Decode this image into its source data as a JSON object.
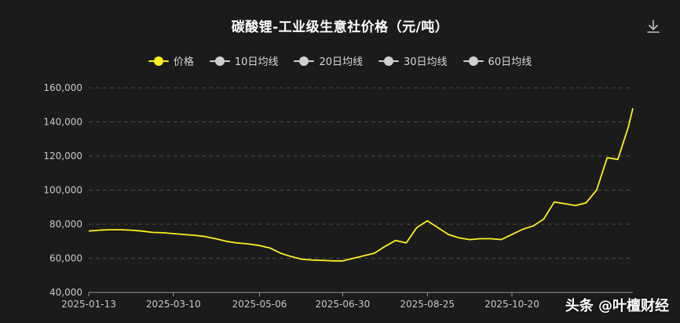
{
  "header": {
    "title": "碳酸锂-工业级生意社价格（元/吨）",
    "download_icon": "download-icon"
  },
  "legend": {
    "items": [
      {
        "label": "价格",
        "color": "#ffef1f"
      },
      {
        "label": "10日均线",
        "color": "#cfcfcf"
      },
      {
        "label": "20日均线",
        "color": "#cfcfcf"
      },
      {
        "label": "30日均线",
        "color": "#cfcfcf"
      },
      {
        "label": "60日均线",
        "color": "#cfcfcf"
      }
    ]
  },
  "watermark": {
    "text": "头条 @叶檀财经"
  },
  "chart_data": {
    "type": "line",
    "title": "碳酸锂-工业级生意社价格（元/吨）",
    "xlabel": "",
    "ylabel": "",
    "ylim": [
      40000,
      160000
    ],
    "yticks": [
      "40,000",
      "60,000",
      "80,000",
      "100,000",
      "120,000",
      "140,000",
      "160,000"
    ],
    "xticks": [
      "2025-01-13",
      "2025-03-10",
      "2025-05-06",
      "2025-06-30",
      "2025-08-25",
      "2025-10-20"
    ],
    "grid": true,
    "legend_position": "top",
    "series": [
      {
        "name": "价格",
        "color": "#ffef1f",
        "points": [
          [
            "2025-01-13",
            76000
          ],
          [
            "2025-01-20",
            76500
          ],
          [
            "2025-01-27",
            76800
          ],
          [
            "2025-02-03",
            76800
          ],
          [
            "2025-02-10",
            76500
          ],
          [
            "2025-02-17",
            76000
          ],
          [
            "2025-02-24",
            75200
          ],
          [
            "2025-03-03",
            75000
          ],
          [
            "2025-03-10",
            74500
          ],
          [
            "2025-03-17",
            74000
          ],
          [
            "2025-03-24",
            73500
          ],
          [
            "2025-03-31",
            72800
          ],
          [
            "2025-04-07",
            71500
          ],
          [
            "2025-04-14",
            70000
          ],
          [
            "2025-04-21",
            69000
          ],
          [
            "2025-04-28",
            68500
          ],
          [
            "2025-05-06",
            67500
          ],
          [
            "2025-05-13",
            66000
          ],
          [
            "2025-05-20",
            63000
          ],
          [
            "2025-05-27",
            61000
          ],
          [
            "2025-06-03",
            59500
          ],
          [
            "2025-06-10",
            59000
          ],
          [
            "2025-06-17",
            58800
          ],
          [
            "2025-06-24",
            58500
          ],
          [
            "2025-06-30",
            58500
          ],
          [
            "2025-07-07",
            60000
          ],
          [
            "2025-07-14",
            61500
          ],
          [
            "2025-07-21",
            63000
          ],
          [
            "2025-07-28",
            67000
          ],
          [
            "2025-08-04",
            70500
          ],
          [
            "2025-08-11",
            69000
          ],
          [
            "2025-08-18",
            78000
          ],
          [
            "2025-08-25",
            82000
          ],
          [
            "2025-09-01",
            78000
          ],
          [
            "2025-09-08",
            74000
          ],
          [
            "2025-09-15",
            72000
          ],
          [
            "2025-09-22",
            71000
          ],
          [
            "2025-09-29",
            71500
          ],
          [
            "2025-10-06",
            71500
          ],
          [
            "2025-10-13",
            71000
          ],
          [
            "2025-10-20",
            74000
          ],
          [
            "2025-10-27",
            77000
          ],
          [
            "2025-11-03",
            79000
          ],
          [
            "2025-11-10",
            83000
          ],
          [
            "2025-11-17",
            93000
          ],
          [
            "2025-11-24",
            92000
          ],
          [
            "2025-12-01",
            91000
          ],
          [
            "2025-12-08",
            92500
          ],
          [
            "2025-12-15",
            100000
          ],
          [
            "2025-12-22",
            119000
          ],
          [
            "2025-12-29",
            118000
          ],
          [
            "2026-01-05",
            137000
          ],
          [
            "2026-01-08",
            148000
          ]
        ]
      }
    ]
  }
}
